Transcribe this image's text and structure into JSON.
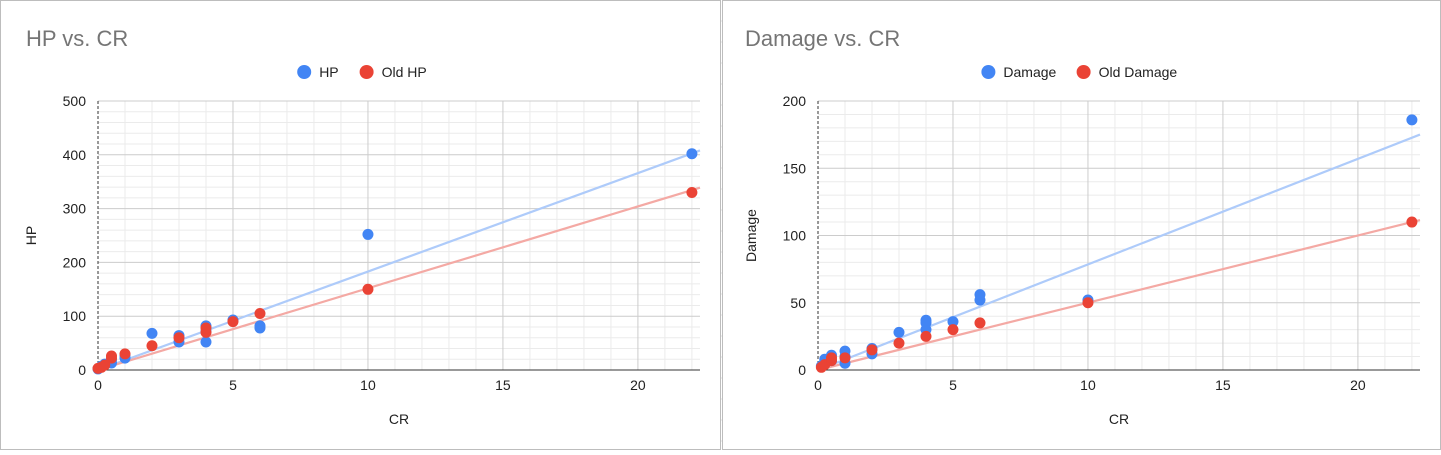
{
  "colors": {
    "series_new": "#4285f4",
    "series_old": "#ea4335",
    "trend_new": "#aecbfa",
    "trend_old": "#f4a9a4",
    "title": "#757575",
    "text": "#222222",
    "grid_major": "#cccccc",
    "grid_minor": "#ebebeb"
  },
  "chart_data": [
    {
      "type": "scatter",
      "title": "HP  vs. CR",
      "xlabel": "CR",
      "ylabel": "HP",
      "xlim": [
        0,
        22.3
      ],
      "ylim": [
        0,
        500
      ],
      "xticks": [
        0,
        5,
        10,
        15,
        20
      ],
      "yticks": [
        0,
        100,
        200,
        300,
        400,
        500
      ],
      "xtick_labels": [
        "0",
        "5",
        "10",
        "15",
        "20"
      ],
      "ytick_labels": [
        "0",
        "100",
        "200",
        "300",
        "400",
        "500"
      ],
      "legend_position": "top",
      "grid": true,
      "trendline": true,
      "series": [
        {
          "name": "HP",
          "color": "#4285f4",
          "trend_slope": 18.3,
          "points": [
            [
              0,
              2
            ],
            [
              0.125,
              7
            ],
            [
              0.25,
              11
            ],
            [
              0.5,
              13
            ],
            [
              0.5,
              19
            ],
            [
              1,
              22
            ],
            [
              1,
              27
            ],
            [
              2,
              68
            ],
            [
              3,
              52
            ],
            [
              3,
              64
            ],
            [
              4,
              52
            ],
            [
              4,
              72
            ],
            [
              4,
              82
            ],
            [
              5,
              93
            ],
            [
              6,
              78
            ],
            [
              6,
              82
            ],
            [
              10,
              252
            ],
            [
              22,
              402
            ]
          ]
        },
        {
          "name": "Old HP",
          "color": "#ea4335",
          "trend_slope": 15.2,
          "points": [
            [
              0,
              3
            ],
            [
              0.125,
              5
            ],
            [
              0.25,
              9
            ],
            [
              0.5,
              22
            ],
            [
              0.5,
              26
            ],
            [
              1,
              30
            ],
            [
              2,
              45
            ],
            [
              3,
              60
            ],
            [
              4,
              70
            ],
            [
              4,
              78
            ],
            [
              5,
              90
            ],
            [
              6,
              105
            ],
            [
              10,
              150
            ],
            [
              22,
              330
            ]
          ]
        }
      ]
    },
    {
      "type": "scatter",
      "title": "Damage vs. CR",
      "xlabel": "CR",
      "ylabel": "Damage",
      "xlim": [
        0,
        22.3
      ],
      "ylim": [
        0,
        200
      ],
      "xticks": [
        0,
        5,
        10,
        15,
        20
      ],
      "yticks": [
        0,
        50,
        100,
        150,
        200
      ],
      "xtick_labels": [
        "0",
        "5",
        "10",
        "15",
        "20"
      ],
      "ytick_labels": [
        "0",
        "50",
        "100",
        "150",
        "200"
      ],
      "legend_position": "top",
      "grid": true,
      "trendline": true,
      "series": [
        {
          "name": "Damage",
          "color": "#4285f4",
          "trend_slope": 7.85,
          "points": [
            [
              0.125,
              3
            ],
            [
              0.25,
              6
            ],
            [
              0.25,
              8
            ],
            [
              0.5,
              7
            ],
            [
              0.5,
              11
            ],
            [
              1,
              5
            ],
            [
              1,
              10
            ],
            [
              1,
              14
            ],
            [
              2,
              12
            ],
            [
              2,
              16
            ],
            [
              3,
              28
            ],
            [
              4,
              30
            ],
            [
              4,
              35
            ],
            [
              4,
              37
            ],
            [
              5,
              36
            ],
            [
              6,
              52
            ],
            [
              6,
              56
            ],
            [
              10,
              52
            ],
            [
              22,
              186
            ]
          ]
        },
        {
          "name": "Old Damage",
          "color": "#ea4335",
          "trend_slope": 5.0,
          "points": [
            [
              0.125,
              2
            ],
            [
              0.25,
              4
            ],
            [
              0.5,
              7
            ],
            [
              0.5,
              9
            ],
            [
              1,
              9
            ],
            [
              2,
              15
            ],
            [
              3,
              20
            ],
            [
              4,
              25
            ],
            [
              5,
              30
            ],
            [
              6,
              35
            ],
            [
              10,
              50
            ],
            [
              22,
              110
            ]
          ]
        }
      ]
    }
  ]
}
